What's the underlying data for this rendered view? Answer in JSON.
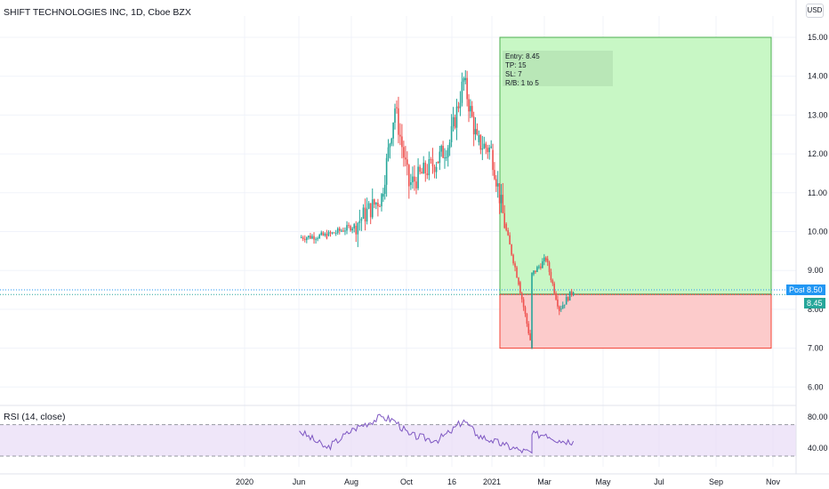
{
  "header": {
    "symbol_title": "SHIFT TECHNOLOGIES INC, 1D, Cboe BZX",
    "currency_button": "USD"
  },
  "price_tags": {
    "session_label": "Post",
    "session_price": "8.50",
    "entry_price": "8.45"
  },
  "position_tool": {
    "text": [
      "Entry: 8.45",
      "TP: 15",
      "SL: 7",
      "R/B: 1 to 5"
    ],
    "entry": 8.45,
    "take_profit": 15,
    "stop_loss": 7
  },
  "rsi_panel": {
    "title": "RSI (14, close)"
  },
  "colors": {
    "up": "#26a69a",
    "down": "#ef5350",
    "rsi_line": "#7e57c2",
    "profit_zone": "#c8f7c5",
    "loss_zone": "#fccbcb",
    "price_tag_blue": "#2196f3",
    "entry_tag_teal": "#26a69a"
  },
  "chart_data": [
    {
      "type": "candlestick",
      "title": "SHIFT TECHNOLOGIES INC, 1D, Cboe BZX",
      "y_axis_ticks": [
        "15.00",
        "14.00",
        "13.00",
        "12.00",
        "11.00",
        "10.00",
        "9.00",
        "8.00",
        "7.00",
        "6.00"
      ],
      "ylim": [
        5.6,
        15.6
      ],
      "x_axis_ticks": [
        "2020",
        "Jun",
        "Aug",
        "Oct",
        "16",
        "2021",
        "Mar",
        "May",
        "Jul",
        "Sep",
        "Nov"
      ],
      "x_range_months": [
        "2020-03",
        "2021-11"
      ],
      "grid": true,
      "series": [
        {
          "name": "price",
          "x": [
            "2020-03",
            "2020-04",
            "2020-05",
            "2020-06",
            "2020-06",
            "2020-07",
            "2020-08",
            "2020-08",
            "2020-09",
            "2020-09",
            "2020-10",
            "2020-10",
            "2020-11",
            "2020-11",
            "2020-11",
            "2020-12",
            "2020-12",
            "2021-01"
          ],
          "close": [
            9.85,
            9.9,
            10.15,
            10.9,
            13.2,
            11.2,
            11.8,
            12.3,
            13.9,
            12.3,
            12.1,
            10.2,
            8.7,
            7.0,
            8.9,
            9.3,
            8.0,
            8.5
          ]
        }
      ]
    },
    {
      "type": "line",
      "title": "RSI (14, close)",
      "y_axis_ticks": [
        "80.00",
        "40.00"
      ],
      "ylim": [
        30,
        90
      ],
      "band": [
        70,
        30
      ],
      "series": [
        {
          "name": "RSI",
          "x": [
            "2020-03",
            "2020-04",
            "2020-05",
            "2020-06",
            "2020-06",
            "2020-07",
            "2020-08",
            "2020-08",
            "2020-09",
            "2020-09",
            "2020-10",
            "2020-10",
            "2020-11",
            "2020-11",
            "2020-11",
            "2020-12",
            "2020-12",
            "2021-01"
          ],
          "values": [
            62,
            40,
            65,
            80,
            75,
            57,
            50,
            60,
            76,
            57,
            50,
            44,
            38,
            34,
            57,
            58,
            50,
            49
          ]
        }
      ]
    }
  ]
}
